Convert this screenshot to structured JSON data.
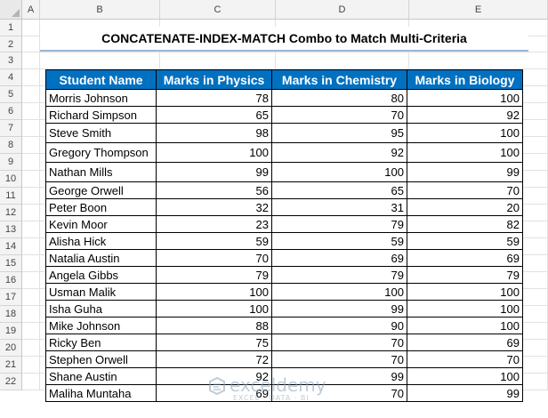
{
  "columns": [
    "A",
    "B",
    "C",
    "D",
    "E"
  ],
  "rows": [
    "1",
    "2",
    "3",
    "4",
    "5",
    "6",
    "7",
    "8",
    "9",
    "10",
    "11",
    "12",
    "13",
    "14",
    "15",
    "16",
    "17",
    "18",
    "19",
    "20",
    "21",
    "22"
  ],
  "title": "CONCATENATE-INDEX-MATCH Combo to Match Multi-Criteria",
  "table": {
    "headers": [
      "Student Name",
      "Marks in Physics",
      "Marks in Chemistry",
      "Marks in Biology"
    ],
    "rows": [
      [
        "Morris Johnson",
        "78",
        "80",
        "100"
      ],
      [
        "Richard Simpson",
        "65",
        "70",
        "92"
      ],
      [
        "Steve Smith",
        "98",
        "95",
        "100"
      ],
      [
        "Gregory Thompson",
        "100",
        "92",
        "100"
      ],
      [
        "Nathan Mills",
        "99",
        "100",
        "99"
      ],
      [
        "George Orwell",
        "56",
        "65",
        "70"
      ],
      [
        "Peter Boon",
        "32",
        "31",
        "20"
      ],
      [
        "Kevin  Moor",
        "23",
        "79",
        "82"
      ],
      [
        "Alisha Hick",
        "59",
        "59",
        "59"
      ],
      [
        "Natalia Austin",
        "70",
        "69",
        "69"
      ],
      [
        "Angela Gibbs",
        "79",
        "79",
        "79"
      ],
      [
        "Usman Malik",
        "100",
        "100",
        "100"
      ],
      [
        "Isha Guha",
        "100",
        "99",
        "100"
      ],
      [
        "Mike Johnson",
        "88",
        "90",
        "100"
      ],
      [
        "Ricky Ben",
        "75",
        "70",
        "69"
      ],
      [
        "Stephen Orwell",
        "72",
        "70",
        "70"
      ],
      [
        "Shane Austin",
        "92",
        "99",
        "100"
      ],
      [
        "Maliha Muntaha",
        "69",
        "70",
        "99"
      ]
    ]
  },
  "watermark": {
    "name": "exceldemy",
    "tagline": "EXCEL · DATA · BI",
    "icon": "exceldemy-logo-icon",
    "color": "#8aa3bd"
  },
  "colors": {
    "header_fill": "#0070c0",
    "header_text": "#ffffff",
    "title_underline": "#9bb7d6"
  }
}
